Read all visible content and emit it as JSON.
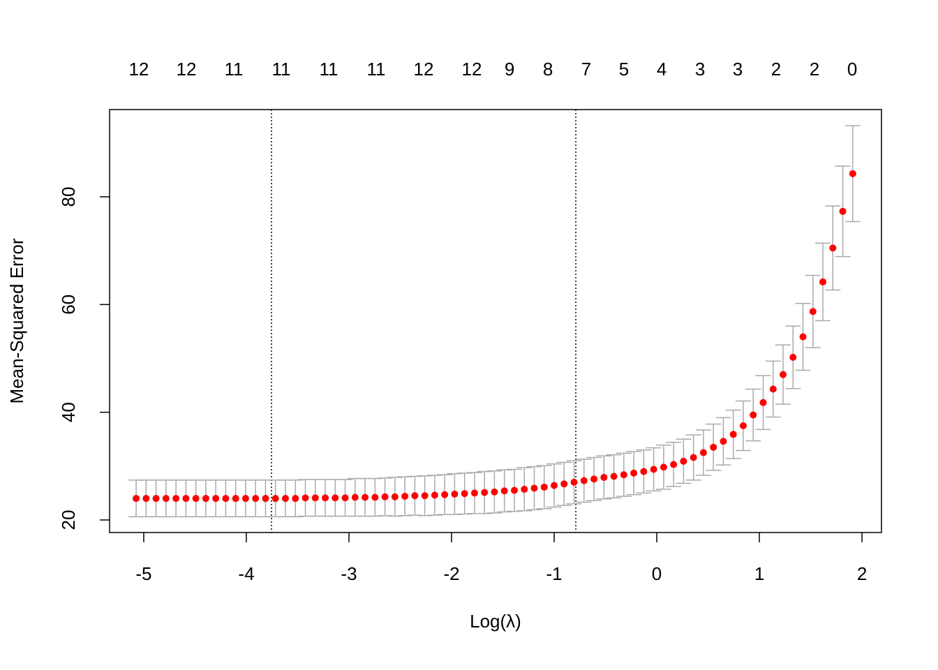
{
  "chart_data": {
    "type": "scatter",
    "xlabel": "Log(λ)",
    "ylabel": "Mean-Squared Error",
    "x_start": -5.074,
    "x_step": 0.097,
    "x": [
      -5.074,
      -4.977,
      -4.88,
      -4.783,
      -4.686,
      -4.589,
      -4.492,
      -4.395,
      -4.298,
      -4.201,
      -4.104,
      -4.007,
      -3.91,
      -3.813,
      -3.716,
      -3.619,
      -3.522,
      -3.425,
      -3.328,
      -3.231,
      -3.134,
      -3.037,
      -2.94,
      -2.843,
      -2.746,
      -2.649,
      -2.552,
      -2.455,
      -2.358,
      -2.261,
      -2.164,
      -2.067,
      -1.97,
      -1.873,
      -1.776,
      -1.679,
      -1.582,
      -1.485,
      -1.388,
      -1.291,
      -1.194,
      -1.097,
      -1.0,
      -0.903,
      -0.806,
      -0.709,
      -0.612,
      -0.515,
      -0.418,
      -0.321,
      -0.224,
      -0.127,
      -0.03,
      0.067,
      0.164,
      0.261,
      0.358,
      0.455,
      0.552,
      0.649,
      0.746,
      0.843,
      0.94,
      1.037,
      1.134,
      1.231,
      1.328,
      1.425,
      1.522,
      1.619,
      1.716,
      1.813,
      1.91
    ],
    "series": [
      {
        "color": "#ff0000",
        "error_color": "#aaaaaa",
        "values": [
          24.0,
          24.0,
          24.0,
          24.0,
          24.0,
          24.0,
          24.0,
          24.0,
          24.0,
          24.0,
          24.0,
          24.0,
          24.0,
          24.0,
          24.0,
          24.0,
          24.0,
          24.1,
          24.1,
          24.1,
          24.1,
          24.1,
          24.2,
          24.2,
          24.2,
          24.3,
          24.3,
          24.4,
          24.5,
          24.5,
          24.6,
          24.7,
          24.8,
          24.9,
          25.0,
          25.1,
          25.2,
          25.4,
          25.5,
          25.7,
          25.9,
          26.1,
          26.4,
          26.7,
          27.0,
          27.3,
          27.6,
          27.9,
          28.1,
          28.4,
          28.7,
          29.0,
          29.4,
          29.8,
          30.3,
          30.9,
          31.6,
          32.5,
          33.5,
          34.6,
          35.9,
          37.5,
          39.5,
          41.8,
          44.3,
          47.0,
          50.2,
          54.0,
          58.7,
          64.2,
          70.5,
          77.3,
          84.3
        ],
        "errors": [
          3.4,
          3.4,
          3.4,
          3.4,
          3.4,
          3.4,
          3.4,
          3.4,
          3.4,
          3.4,
          3.4,
          3.4,
          3.4,
          3.4,
          3.4,
          3.4,
          3.4,
          3.4,
          3.4,
          3.4,
          3.4,
          3.4,
          3.5,
          3.5,
          3.5,
          3.5,
          3.6,
          3.6,
          3.6,
          3.7,
          3.7,
          3.7,
          3.8,
          3.8,
          3.8,
          3.9,
          3.9,
          3.9,
          3.9,
          4.0,
          4.0,
          4.0,
          4.0,
          4.0,
          4.0,
          4.0,
          4.0,
          4.0,
          4.0,
          4.0,
          4.0,
          4.0,
          4.0,
          4.1,
          4.1,
          4.1,
          4.2,
          4.2,
          4.3,
          4.4,
          4.5,
          4.6,
          4.8,
          5.0,
          5.2,
          5.5,
          5.8,
          6.2,
          6.7,
          7.2,
          7.8,
          8.4,
          8.9
        ]
      }
    ],
    "vlines": [
      -3.755,
      -0.789
    ],
    "xlim": [
      -5.333,
      2.19
    ],
    "ylim": [
      17.67,
      96.2
    ],
    "xticks": [
      -5,
      -4,
      -3,
      -2,
      -1,
      0,
      1,
      2
    ],
    "yticks": [
      20,
      40,
      60,
      80
    ],
    "x2ticks": [
      {
        "value": -5.048,
        "label": "12"
      },
      {
        "value": -4.585,
        "label": "12"
      },
      {
        "value": -4.122,
        "label": "11"
      },
      {
        "value": -3.66,
        "label": "11"
      },
      {
        "value": -3.197,
        "label": "11"
      },
      {
        "value": -2.735,
        "label": "11"
      },
      {
        "value": -2.272,
        "label": "12"
      },
      {
        "value": -1.803,
        "label": "12"
      },
      {
        "value": -1.435,
        "label": "9"
      },
      {
        "value": -1.061,
        "label": "8"
      },
      {
        "value": -0.687,
        "label": "7"
      },
      {
        "value": -0.32,
        "label": "5"
      },
      {
        "value": 0.048,
        "label": "4"
      },
      {
        "value": 0.422,
        "label": "3"
      },
      {
        "value": 0.789,
        "label": "3"
      },
      {
        "value": 1.163,
        "label": "2"
      },
      {
        "value": 1.537,
        "label": "2"
      },
      {
        "value": 1.905,
        "label": "0"
      }
    ]
  }
}
